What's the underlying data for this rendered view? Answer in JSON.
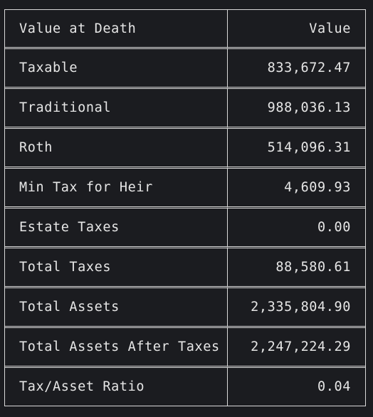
{
  "table": {
    "headers": [
      "Value at Death",
      "Value"
    ],
    "rows": [
      {
        "label": "Taxable",
        "value": "833,672.47"
      },
      {
        "label": "Traditional",
        "value": "988,036.13"
      },
      {
        "label": "Roth",
        "value": "514,096.31"
      },
      {
        "label": "Min Tax for Heir",
        "value": "4,609.93"
      },
      {
        "label": "Estate Taxes",
        "value": "0.00"
      },
      {
        "label": "Total Taxes",
        "value": "88,580.61"
      },
      {
        "label": "Total Assets",
        "value": "2,335,804.90"
      },
      {
        "label": "Total Assets After Taxes",
        "value": "2,247,224.29"
      },
      {
        "label": "Tax/Asset Ratio",
        "value": "0.04"
      }
    ]
  }
}
